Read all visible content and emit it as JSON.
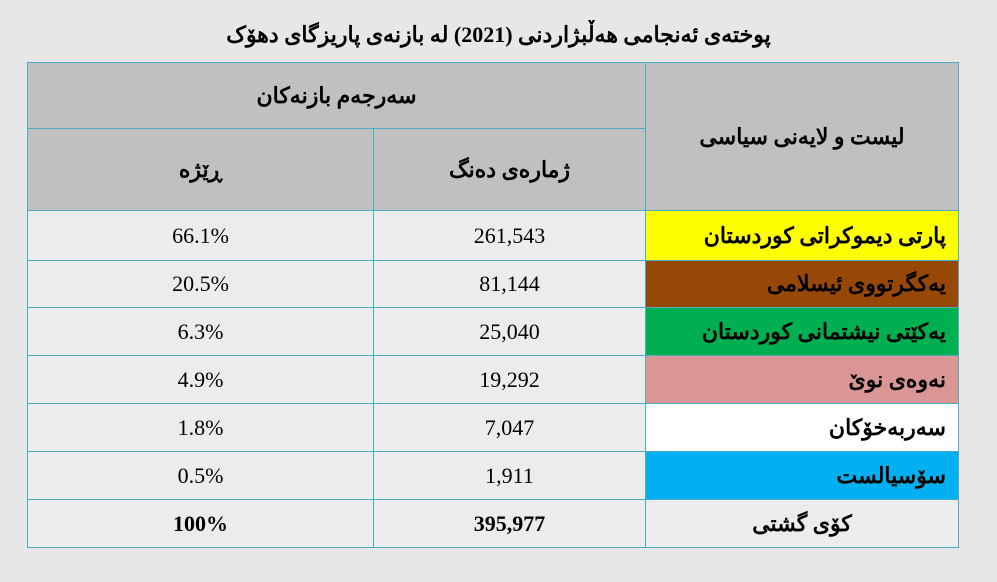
{
  "header": {
    "title": "پوختەی ئەنجامی هەڵبژاردنی (2021) لە بازنەی پاریزگای دهۆک"
  },
  "table": {
    "group_header": "سەرجەم بازنەکان",
    "name_header": "لیست و لایەنی سیاسی",
    "votes_header": "ژمارەی دەنگ",
    "share_header": "ڕێژە",
    "rows": [
      [
        "پارتی دیموکراتی کوردستان",
        "261,543",
        "66.1%"
      ],
      [
        "یەکگرتووی ئیسلامی",
        "81,144",
        "20.5%"
      ],
      [
        "یەکێتی نیشتمانی کوردستان",
        "25,040",
        "6.3%"
      ],
      [
        "نەوەی نوێ",
        "19,292",
        "4.9%"
      ],
      [
        "سەربەخۆکان",
        "7,047",
        "1.8%"
      ],
      [
        "سۆسیالست",
        "1,911",
        "0.5%"
      ]
    ],
    "total": [
      "کۆی گشتی",
      "395,977",
      "100%"
    ]
  }
}
